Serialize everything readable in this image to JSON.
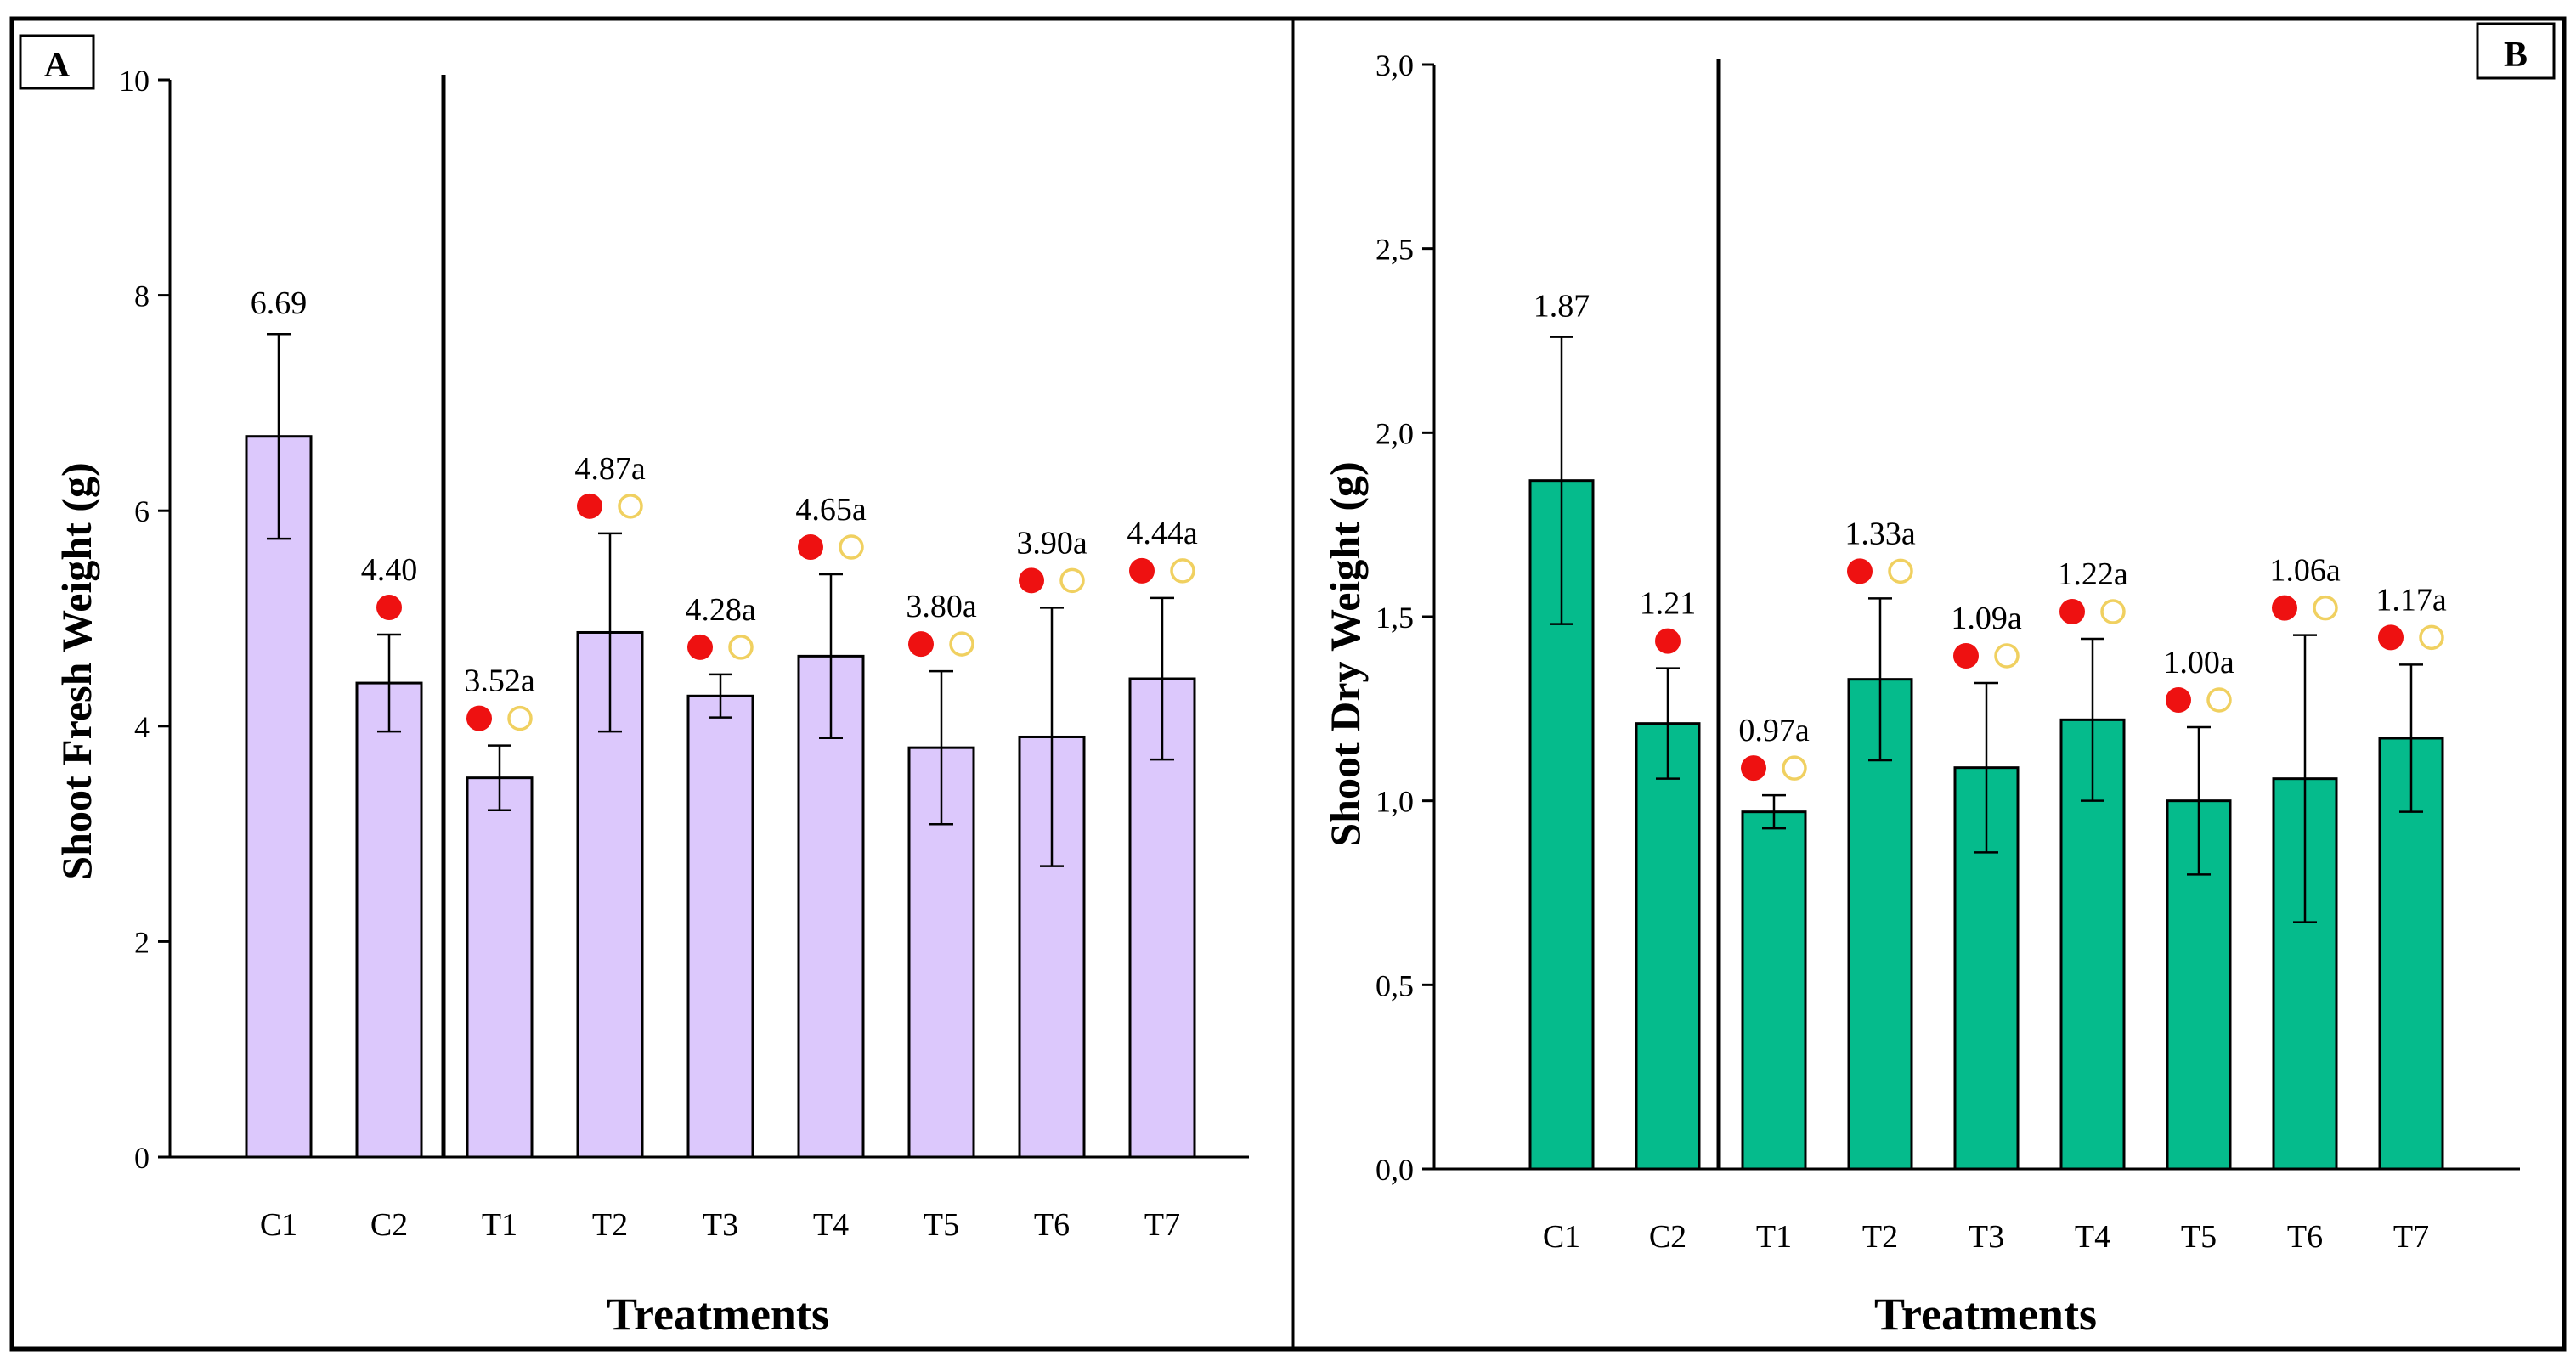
{
  "chart_data": [
    {
      "id": "A",
      "panel_label": "A",
      "type": "bar",
      "ylabel": "Shoot Fresh Weight (g)",
      "xlabel": "Treatments",
      "ylim": [
        0,
        10
      ],
      "yticks": [
        0,
        2,
        4,
        6,
        8,
        10
      ],
      "ytick_labels": [
        "0",
        "2",
        "4",
        "6",
        "8",
        "10"
      ],
      "bar_color": "#dcc8fc",
      "categories": [
        "C1",
        "C2",
        "T1",
        "T2",
        "T3",
        "T4",
        "T5",
        "T6",
        "T7"
      ],
      "values": [
        6.69,
        4.4,
        3.52,
        4.87,
        4.28,
        4.65,
        3.8,
        3.9,
        4.44
      ],
      "errors": [
        0.95,
        0.45,
        0.3,
        0.92,
        0.2,
        0.76,
        0.71,
        1.2,
        0.75
      ],
      "value_labels": [
        "6.69",
        "4.40",
        "3.52a",
        "4.87a",
        "4.28a",
        "4.65a",
        "3.80a",
        "3.90a",
        "4.44a"
      ],
      "markers": [
        "none",
        "red",
        "red+hollow",
        "red+hollow",
        "red+hollow",
        "red+hollow",
        "red+hollow",
        "red+hollow",
        "red+hollow"
      ],
      "separator_after_category": "C2"
    },
    {
      "id": "B",
      "panel_label": "B",
      "type": "bar",
      "ylabel": "Shoot Dry Weight (g)",
      "xlabel": "Treatments",
      "ylim": [
        0,
        3
      ],
      "yticks": [
        0,
        0.5,
        1,
        1.5,
        2,
        2.5,
        3
      ],
      "ytick_labels": [
        "0,0",
        "0,5",
        "1,0",
        "1,5",
        "2,0",
        "2,5",
        "3,0"
      ],
      "bar_color": "#05bb8c",
      "categories": [
        "C1",
        "C2",
        "T1",
        "T2",
        "T3",
        "T4",
        "T5",
        "T6",
        "T7"
      ],
      "values": [
        1.87,
        1.21,
        0.97,
        1.33,
        1.09,
        1.22,
        1.0,
        1.06,
        1.17
      ],
      "errors": [
        0.39,
        0.15,
        0.045,
        0.22,
        0.23,
        0.22,
        0.2,
        0.39,
        0.2
      ],
      "value_labels": [
        "1.87",
        "1.21",
        "0.97a",
        "1.33a",
        "1.09a",
        "1.22a",
        "1.00a",
        "1.06a",
        "1.17a"
      ],
      "markers": [
        "none",
        "red",
        "red+hollow",
        "red+hollow",
        "red+hollow",
        "red+hollow",
        "red+hollow",
        "red+hollow",
        "red+hollow"
      ],
      "separator_after_category": "C2"
    }
  ],
  "colors": {
    "marker_red": "#ee1111",
    "marker_hollow": "#f0d060",
    "frame": "#000000"
  }
}
